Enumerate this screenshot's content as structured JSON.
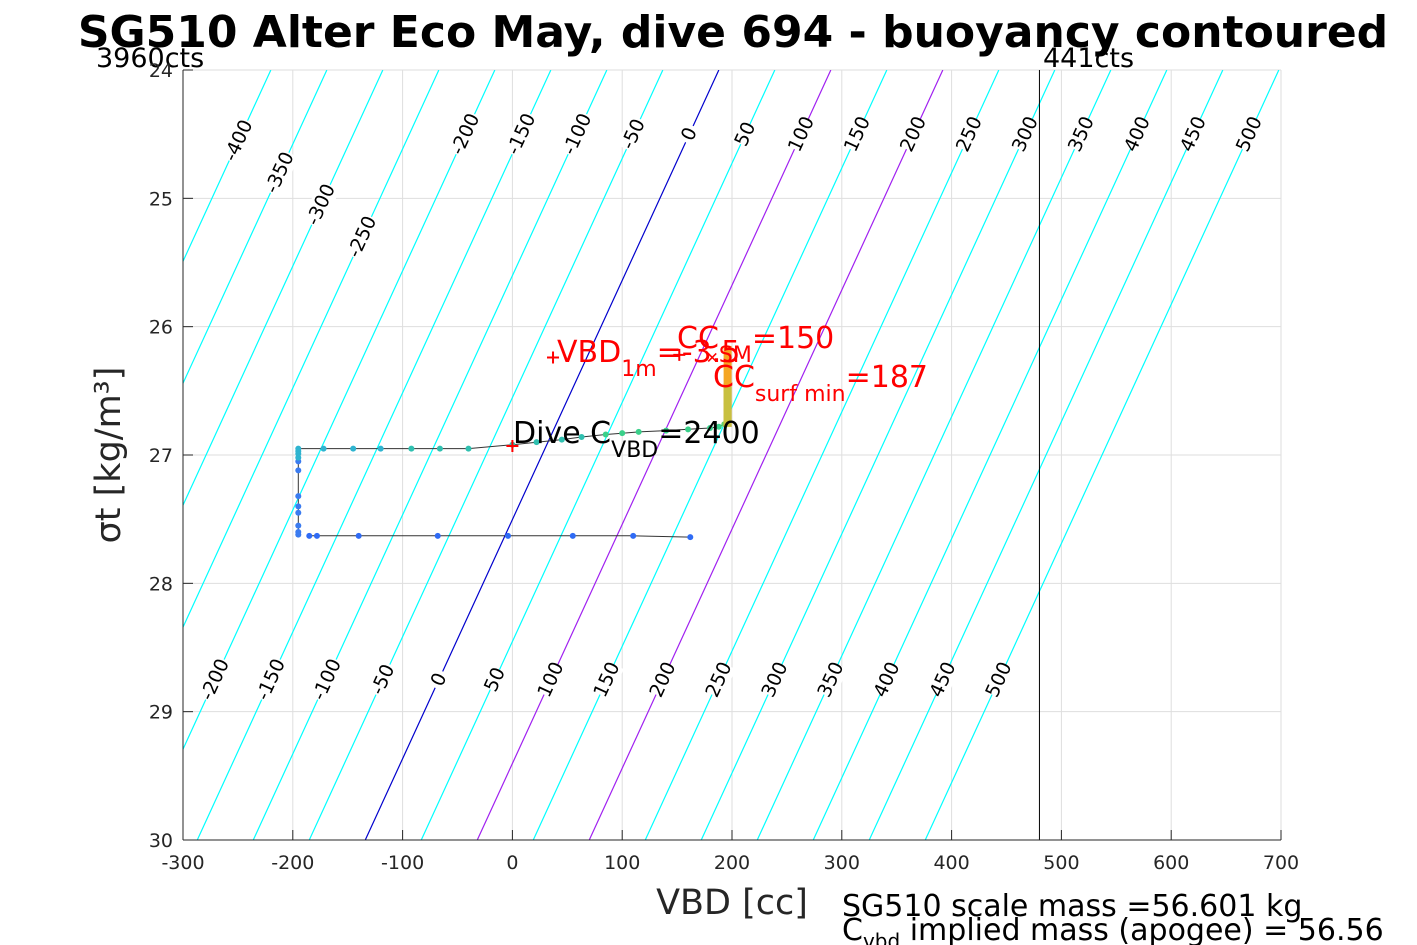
{
  "chart_data": {
    "type": "line",
    "title": "SG510 Alter Eco May, dive 694 - buoyancy contoured",
    "xlabel": "VBD [cc]",
    "ylabel": "σt [kg/m³]",
    "xlim": [
      -300,
      700
    ],
    "ylim": [
      24,
      30
    ],
    "y_reversed": true,
    "grid": true,
    "x_ticks": [
      "-300",
      "-200",
      "-100",
      "0",
      "100",
      "200",
      "300",
      "400",
      "500",
      "600",
      "700"
    ],
    "y_ticks": [
      "24",
      "25",
      "26",
      "27",
      "28",
      "29",
      "30"
    ],
    "corner_labels": {
      "left": "3960cts",
      "right": "441cts"
    },
    "vbd_limit_x": 480,
    "contours": {
      "levels": [
        -400,
        -350,
        -300,
        -250,
        -200,
        -150,
        -100,
        -50,
        0,
        50,
        100,
        150,
        200,
        250,
        300,
        350,
        400,
        450,
        500
      ],
      "zero_line": {
        "x_at_ymin": 188,
        "x_at_ymax": -134
      },
      "x_spacing_per_50": 51,
      "colors": {
        "default": "#00ffff",
        "zero": "#0000cd",
        "special": "#a020f0"
      },
      "special_levels": [
        100,
        200
      ],
      "top_labels": [
        "-400",
        "-350",
        "-300",
        "-250",
        "-200",
        "-150",
        "-100",
        "-50",
        "0",
        "50",
        "100",
        "150",
        "200",
        "250",
        "300",
        "350",
        "400",
        "450",
        "500"
      ],
      "bottom_labels": [
        "-200",
        "-150",
        "-100",
        "-50",
        "0",
        "50",
        "100",
        "150",
        "200",
        "250",
        "300",
        "350",
        "400",
        "450",
        "500"
      ]
    },
    "series": [
      {
        "x": [
          -195,
          -195,
          -195,
          -195,
          -195,
          -195,
          -195,
          -195,
          -195,
          -195,
          -195,
          -195,
          -172,
          -145,
          -120,
          -92,
          -66,
          -40,
          0,
          22,
          45,
          63,
          85,
          100,
          115,
          140,
          160,
          180,
          188,
          193,
          195,
          195,
          195,
          195,
          195,
          195,
          195
        ],
        "y": [
          27.62,
          27.6,
          27.55,
          27.45,
          27.4,
          27.32,
          27.12,
          27.05,
          27.02,
          26.99,
          26.97,
          26.95,
          26.95,
          26.95,
          26.95,
          26.95,
          26.95,
          26.95,
          26.92,
          26.9,
          26.88,
          26.86,
          26.84,
          26.83,
          26.82,
          26.81,
          26.8,
          26.79,
          26.78,
          26.76,
          26.74,
          26.7,
          26.65,
          26.6,
          26.55,
          26.5,
          26.45
        ]
      },
      {
        "x": [
          -185,
          -178,
          -140,
          -68,
          -4,
          55,
          110,
          162
        ],
        "y": [
          27.63,
          27.63,
          27.63,
          27.63,
          27.63,
          27.63,
          27.63,
          27.64
        ]
      }
    ],
    "sm_bar": {
      "x": 196,
      "y_top": 26.15,
      "y_bottom": 26.78
    },
    "markers": [
      {
        "x": 0,
        "y": 26.93,
        "label": "+"
      },
      {
        "x": 37,
        "y": 26.24,
        "label": "+"
      },
      {
        "x": 152,
        "y": 26.22,
        "label": "+"
      },
      {
        "x": 182,
        "y": 26.24,
        "label": "x"
      }
    ],
    "annotations": [
      {
        "id": "vbd1m",
        "main": "VBD",
        "sub": "1m",
        "value": "=-3.5"
      },
      {
        "id": "ccsm",
        "main": "CC",
        "sub": "SM",
        "value": "=150"
      },
      {
        "id": "ccsurf",
        "main": "CC",
        "sub": "surf min",
        "value": "=187"
      },
      {
        "id": "divecvbd",
        "main": "Dive C",
        "sub": "VBD",
        "value": "=2400"
      }
    ],
    "info_lines": {
      "scale_mass": "SG510 scale mass =56.601 kg",
      "implied_mass_main": "C",
      "implied_mass_sub": "vbd",
      "implied_mass_rest": " implied mass (apogee) = 56.56"
    }
  }
}
